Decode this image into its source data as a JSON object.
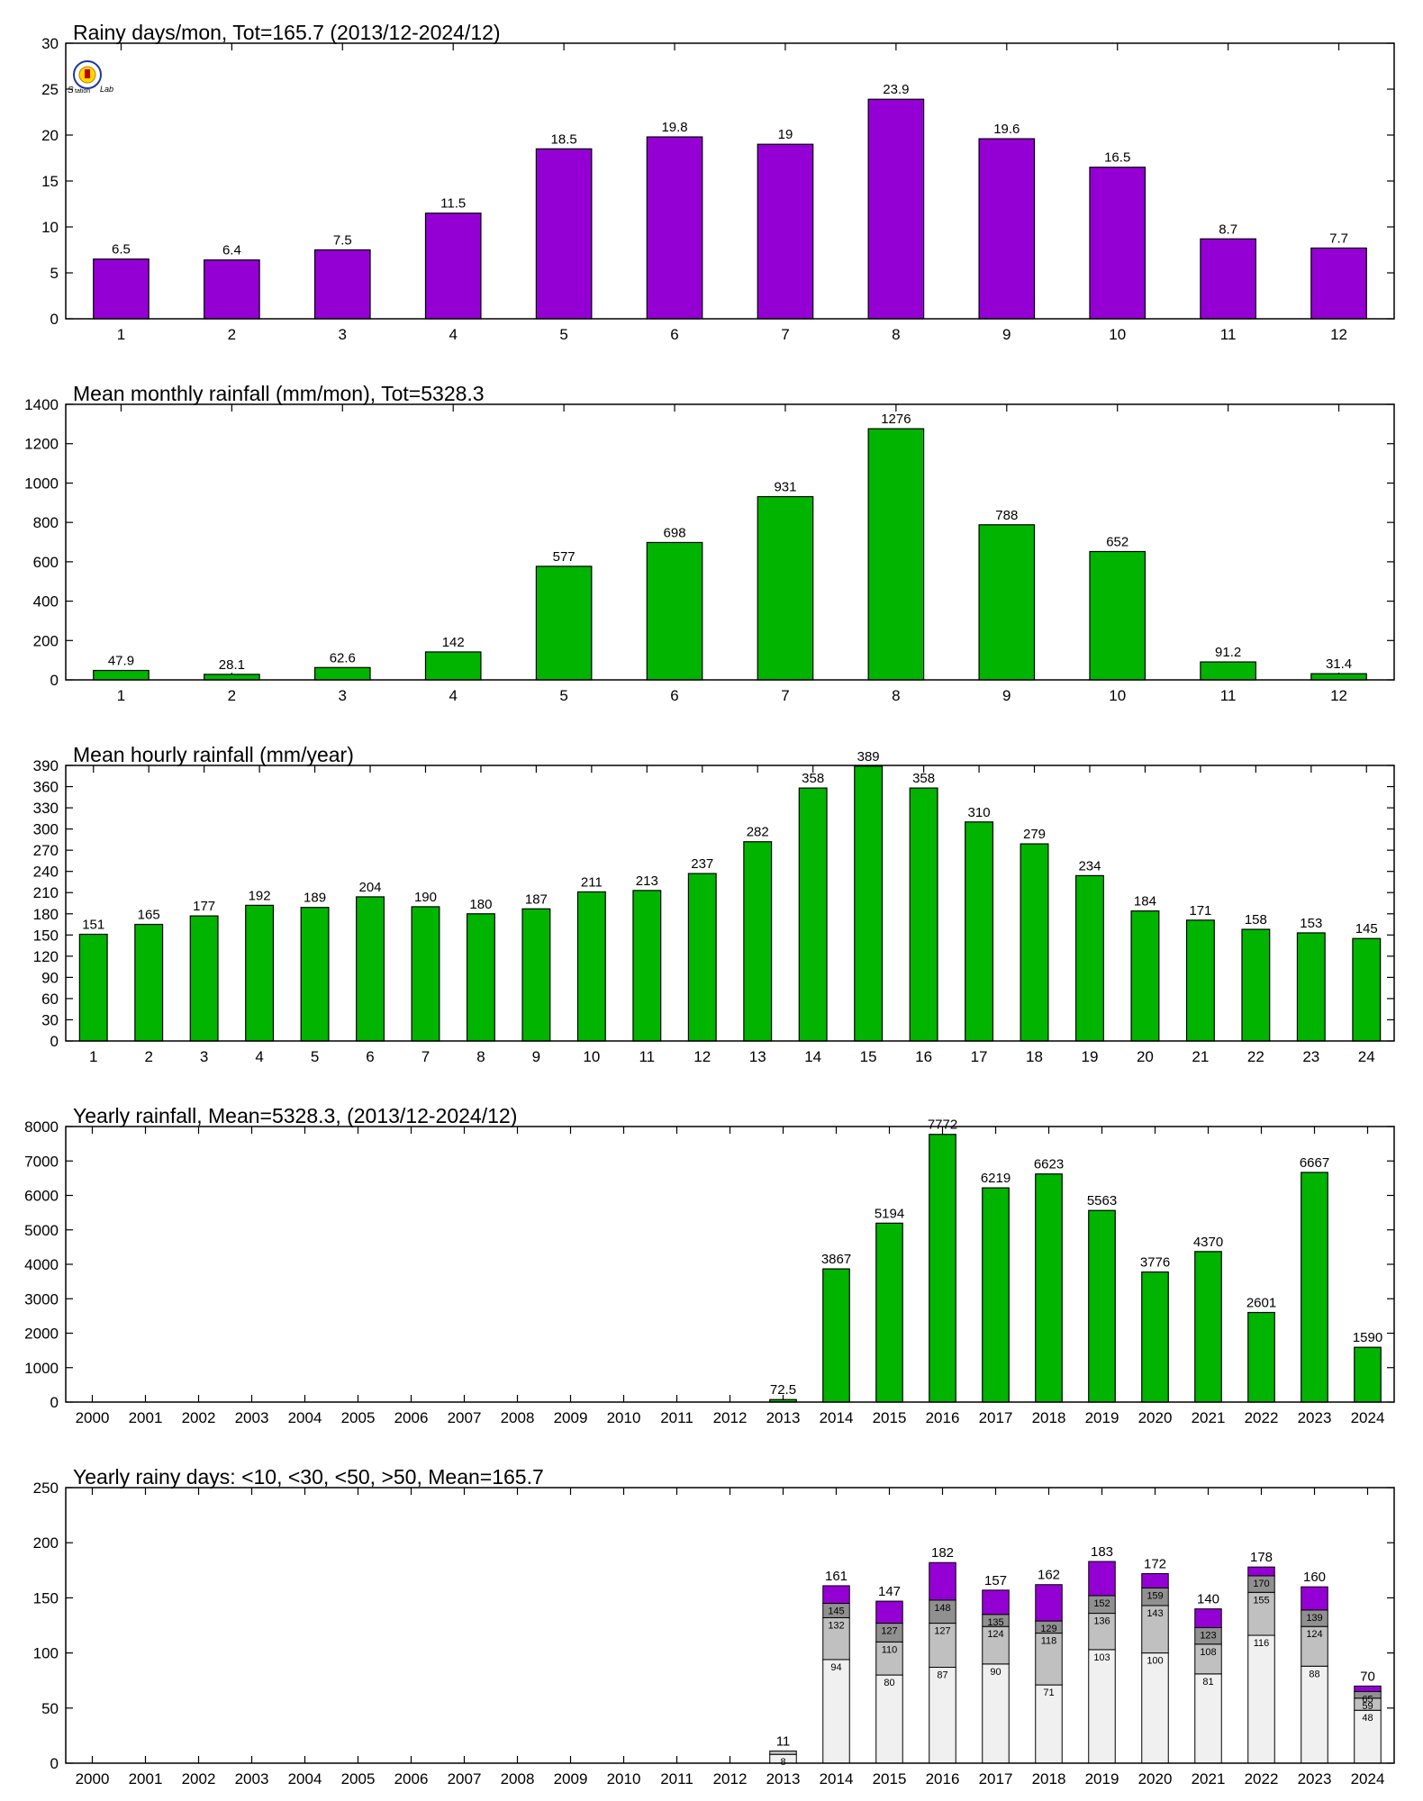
{
  "colors": {
    "purple": "#9400d3",
    "green": "#00b400",
    "gray_light": "#f0f0f0",
    "gray_mid": "#c0c0c0",
    "gray_dark": "#909090"
  },
  "logo": {
    "icon": "station-lab-logo"
  },
  "chart_data": [
    {
      "type": "bar",
      "title": "Rainy days/mon, Tot=165.7 (2013/12-2024/12)",
      "color": "#9400d3",
      "categories": [
        "1",
        "2",
        "3",
        "4",
        "5",
        "6",
        "7",
        "8",
        "9",
        "10",
        "11",
        "12"
      ],
      "values": [
        6.5,
        6.4,
        7.5,
        11.5,
        18.5,
        19.8,
        19,
        23.9,
        19.6,
        16.5,
        8.7,
        7.7
      ],
      "labels": [
        "6.5",
        "6.4",
        "7.5",
        "11.5",
        "18.5",
        "19.8",
        "19",
        "23.9",
        "19.6",
        "16.5",
        "8.7",
        "7.7"
      ],
      "ylim": [
        0,
        30
      ],
      "yticks": [
        "0",
        "5",
        "10",
        "15",
        "20",
        "25",
        "30"
      ]
    },
    {
      "type": "bar",
      "title": "Mean monthly rainfall (mm/mon), Tot=5328.3",
      "color": "#00b400",
      "categories": [
        "1",
        "2",
        "3",
        "4",
        "5",
        "6",
        "7",
        "8",
        "9",
        "10",
        "11",
        "12"
      ],
      "values": [
        47.9,
        28.1,
        62.6,
        142,
        577,
        698,
        931,
        1276,
        788,
        652,
        91.2,
        31.4
      ],
      "labels": [
        "47.9",
        "28.1",
        "62.6",
        "142",
        "577",
        "698",
        "931",
        "1276",
        "788",
        "652",
        "91.2",
        "31.4"
      ],
      "ylim": [
        0,
        1400
      ],
      "yticks": [
        "0",
        "200",
        "400",
        "600",
        "800",
        "1000",
        "1200",
        "1400"
      ]
    },
    {
      "type": "bar",
      "title": "Mean hourly rainfall (mm/year)",
      "color": "#00b400",
      "categories": [
        "1",
        "2",
        "3",
        "4",
        "5",
        "6",
        "7",
        "8",
        "9",
        "10",
        "11",
        "12",
        "13",
        "14",
        "15",
        "16",
        "17",
        "18",
        "19",
        "20",
        "21",
        "22",
        "23",
        "24"
      ],
      "values": [
        151,
        165,
        177,
        192,
        189,
        204,
        190,
        180,
        187,
        211,
        213,
        237,
        282,
        358,
        389,
        358,
        310,
        279,
        234,
        184,
        171,
        158,
        153,
        145
      ],
      "labels": [
        "151",
        "165",
        "177",
        "192",
        "189",
        "204",
        "190",
        "180",
        "187",
        "211",
        "213",
        "237",
        "282",
        "358",
        "389",
        "358",
        "310",
        "279",
        "234",
        "184",
        "171",
        "158",
        "153",
        "145"
      ],
      "ylim": [
        0,
        390
      ],
      "yticks": [
        "0",
        "30",
        "60",
        "90",
        "120",
        "150",
        "180",
        "210",
        "240",
        "270",
        "300",
        "330",
        "360",
        "390"
      ]
    },
    {
      "type": "bar",
      "title": "Yearly rainfall, Mean=5328.3, (2013/12-2024/12)",
      "color": "#00b400",
      "categories": [
        "2000",
        "2001",
        "2002",
        "2003",
        "2004",
        "2005",
        "2006",
        "2007",
        "2008",
        "2009",
        "2010",
        "2011",
        "2012",
        "2013",
        "2014",
        "2015",
        "2016",
        "2017",
        "2018",
        "2019",
        "2020",
        "2021",
        "2022",
        "2023",
        "2024"
      ],
      "values": [
        null,
        null,
        null,
        null,
        null,
        null,
        null,
        null,
        null,
        null,
        null,
        null,
        null,
        72.5,
        3867,
        5194,
        7772,
        6219,
        6623,
        5563,
        3776,
        4370,
        2601,
        6667,
        1590
      ],
      "labels": [
        "",
        "",
        "",
        "",
        "",
        "",
        "",
        "",
        "",
        "",
        "",
        "",
        "",
        "72.5",
        "3867",
        "5194",
        "7772",
        "6219",
        "6623",
        "5563",
        "3776",
        "4370",
        "2601",
        "6667",
        "1590"
      ],
      "ylim": [
        0,
        8000
      ],
      "yticks": [
        "0",
        "1000",
        "2000",
        "3000",
        "4000",
        "5000",
        "6000",
        "7000",
        "8000"
      ]
    },
    {
      "type": "bar",
      "stacked": true,
      "title": "Yearly rainy days: <10, <30, <50, >50, Mean=165.7",
      "categories": [
        "2000",
        "2001",
        "2002",
        "2003",
        "2004",
        "2005",
        "2006",
        "2007",
        "2008",
        "2009",
        "2010",
        "2011",
        "2012",
        "2013",
        "2014",
        "2015",
        "2016",
        "2017",
        "2018",
        "2019",
        "2020",
        "2021",
        "2022",
        "2023",
        "2024"
      ],
      "layer_colors": [
        "#f0f0f0",
        "#c0c0c0",
        "#909090",
        "#9400d3"
      ],
      "cumulative": [
        null,
        null,
        null,
        null,
        null,
        null,
        null,
        null,
        null,
        null,
        null,
        null,
        null,
        [
          8,
          11,
          11,
          11
        ],
        [
          94,
          132,
          145,
          161
        ],
        [
          80,
          110,
          127,
          147
        ],
        [
          87,
          127,
          148,
          182
        ],
        [
          90,
          124,
          135,
          157
        ],
        [
          71,
          118,
          129,
          162
        ],
        [
          103,
          136,
          152,
          183
        ],
        [
          100,
          143,
          159,
          172
        ],
        [
          81,
          108,
          123,
          140
        ],
        [
          116,
          155,
          170,
          178
        ],
        [
          88,
          124,
          139,
          160
        ],
        [
          48,
          59,
          65,
          70
        ]
      ],
      "segment_labels": [
        null,
        null,
        null,
        null,
        null,
        null,
        null,
        null,
        null,
        null,
        null,
        null,
        null,
        [
          "8",
          "",
          "",
          ""
        ],
        [
          "94",
          "132",
          "145",
          ""
        ],
        [
          "80",
          "110",
          "127",
          ""
        ],
        [
          "87",
          "127",
          "148",
          ""
        ],
        [
          "90",
          "124",
          "135",
          ""
        ],
        [
          "71",
          "118",
          "129",
          ""
        ],
        [
          "103",
          "136",
          "152",
          ""
        ],
        [
          "100",
          "143",
          "159",
          ""
        ],
        [
          "81",
          "108",
          "123",
          ""
        ],
        [
          "116",
          "155",
          "170",
          ""
        ],
        [
          "88",
          "124",
          "139",
          ""
        ],
        [
          "48",
          "59",
          "65",
          ""
        ]
      ],
      "totals": [
        "",
        "",
        "",
        "",
        "",
        "",
        "",
        "",
        "",
        "",
        "",
        "",
        "",
        "11",
        "161",
        "147",
        "182",
        "157",
        "162",
        "183",
        "172",
        "140",
        "178",
        "160",
        "70"
      ],
      "ylim": [
        0,
        250
      ],
      "yticks": [
        "0",
        "50",
        "100",
        "150",
        "200",
        "250"
      ]
    }
  ]
}
